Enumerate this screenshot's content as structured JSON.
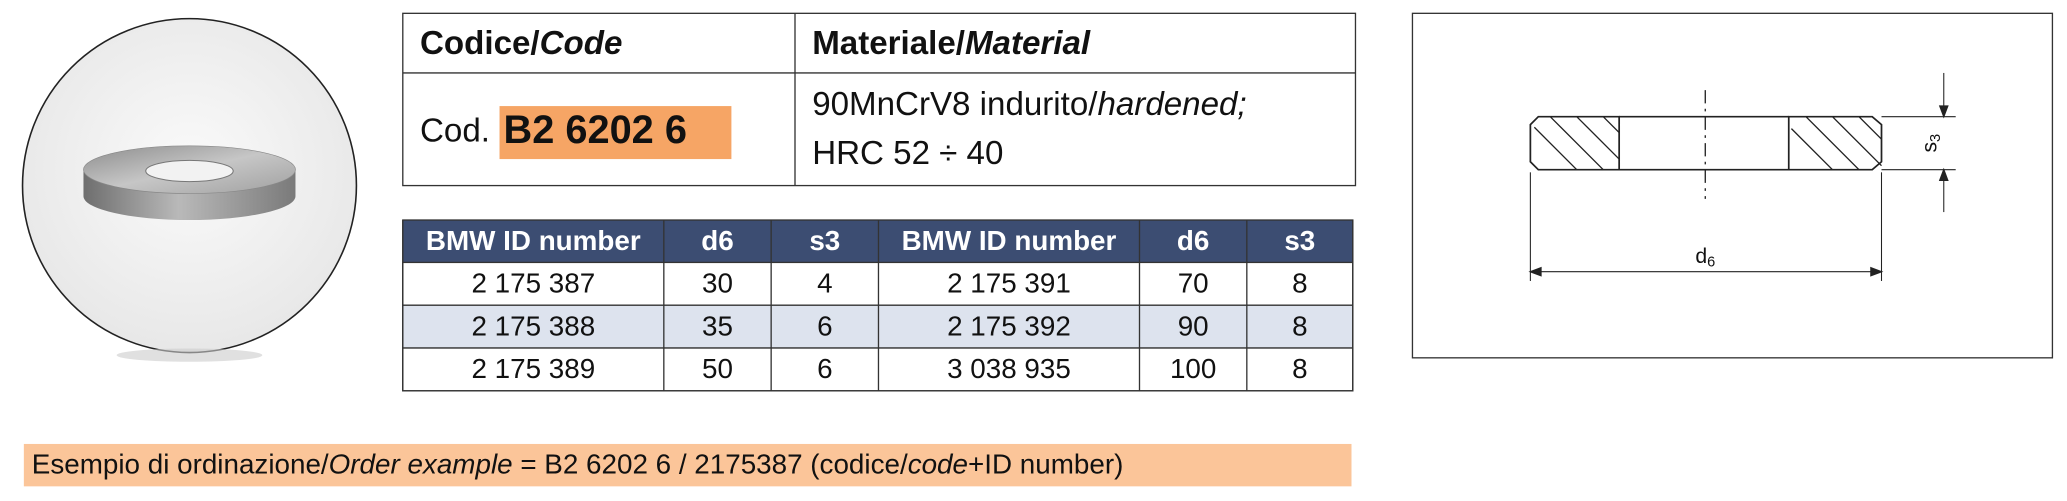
{
  "header": {
    "code_label": "Codice/",
    "code_label_en": "Code",
    "material_label": "Materiale/",
    "material_label_en": "Material"
  },
  "product": {
    "code_prefix": "Cod.",
    "code": "B2 6202 6",
    "material": "90MnCrV8 indurito/",
    "material_en": "hardened;",
    "hardness": "HRC 52 ÷ 40"
  },
  "table": {
    "columns": [
      "BMW ID number",
      "d6",
      "s3",
      "BMW ID number",
      "d6",
      "s3"
    ],
    "rows": [
      [
        "2 175 387",
        30,
        4,
        "2 175 391",
        70,
        8
      ],
      [
        "2 175 388",
        35,
        6,
        "2 175 392",
        90,
        8
      ],
      [
        "2 175 389",
        50,
        6,
        "3 038 935",
        100,
        8
      ]
    ]
  },
  "drawing": {
    "s_label": "s",
    "s_sub": "3",
    "d_label": "d",
    "d_sub": "6"
  },
  "order_example": {
    "label": "Esempio di ordinazione/",
    "label_en": "Order example",
    "text": " = B2 6202 6 / 2175387 (codice/",
    "text_en": "code",
    "text_end": "+ID number)"
  }
}
